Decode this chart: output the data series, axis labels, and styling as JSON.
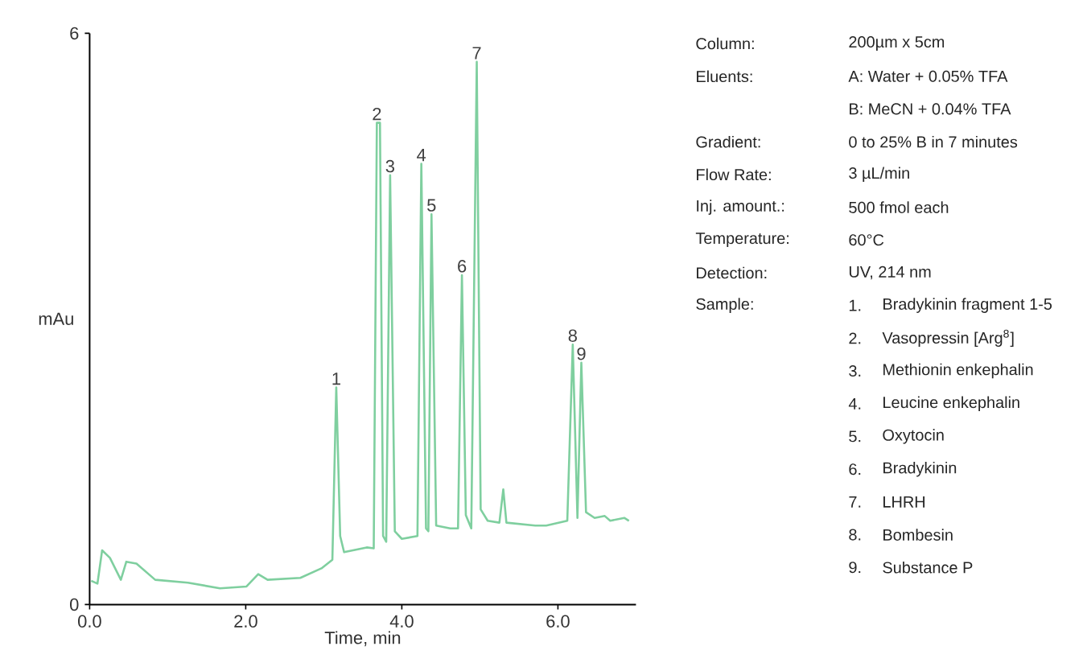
{
  "chart_data": {
    "type": "line",
    "xlabel": "Time, min",
    "ylabel": "mAu",
    "xlim": [
      0,
      7.0
    ],
    "ylim": [
      0,
      6
    ],
    "xticks": [
      {
        "value": 0,
        "label": "0.0"
      },
      {
        "value": 2,
        "label": "2.0"
      },
      {
        "value": 4,
        "label": "4.0"
      },
      {
        "value": 6,
        "label": "6.0"
      }
    ],
    "yticks": [
      0,
      6
    ],
    "grid": false,
    "marker": "none",
    "series": [
      {
        "color": "#7fcf9f",
        "x": [
          0.02,
          0.1,
          0.16,
          0.26,
          0.4,
          0.47,
          0.6,
          0.84,
          1.26,
          1.67,
          2.01,
          2.16,
          2.28,
          2.7,
          2.97,
          3.11,
          3.16,
          3.21,
          3.26,
          3.55,
          3.64,
          3.68,
          3.72,
          3.76,
          3.8,
          3.85,
          3.91,
          4.0,
          4.2,
          4.25,
          4.31,
          4.34,
          4.38,
          4.44,
          4.62,
          4.72,
          4.77,
          4.82,
          4.89,
          4.96,
          5.01,
          5.1,
          5.25,
          5.3,
          5.34,
          5.71,
          5.85,
          6.12,
          6.19,
          6.25,
          6.3,
          6.36,
          6.47,
          6.6,
          6.67,
          6.85,
          6.91
        ],
        "values": [
          0.25,
          0.22,
          0.57,
          0.49,
          0.26,
          0.45,
          0.43,
          0.26,
          0.23,
          0.17,
          0.19,
          0.32,
          0.26,
          0.28,
          0.38,
          0.47,
          2.28,
          0.72,
          0.55,
          0.6,
          0.59,
          5.06,
          5.06,
          0.72,
          0.66,
          4.51,
          0.77,
          0.69,
          0.72,
          4.63,
          0.8,
          0.77,
          4.1,
          0.83,
          0.8,
          0.8,
          3.46,
          0.94,
          0.8,
          5.7,
          1.0,
          0.88,
          0.86,
          1.21,
          0.86,
          0.83,
          0.83,
          0.88,
          2.73,
          0.91,
          2.54,
          0.97,
          0.91,
          0.93,
          0.88,
          0.91,
          0.88
        ]
      }
    ],
    "annotations": [
      {
        "text": "1",
        "x": 3.16,
        "y": 2.28
      },
      {
        "text": "2",
        "x": 3.68,
        "y": 5.06
      },
      {
        "text": "3",
        "x": 3.85,
        "y": 4.51
      },
      {
        "text": "4",
        "x": 4.25,
        "y": 4.63
      },
      {
        "text": "5",
        "x": 4.38,
        "y": 4.1
      },
      {
        "text": "6",
        "x": 4.77,
        "y": 3.46
      },
      {
        "text": "7",
        "x": 4.96,
        "y": 5.7
      },
      {
        "text": "8",
        "x": 6.19,
        "y": 2.73
      },
      {
        "text": "9",
        "x": 6.3,
        "y": 2.54
      },
      "Column:",
      "200µm x 5cm",
      "Eluents:",
      "A: Water + 0.05% TFA",
      "B: MeCN + 0.04% TFA",
      "Gradient:",
      "0 to 25% B in 7 minutes",
      "Flow Rate:",
      "3 µL/min",
      "Inj. amount.:",
      "500 fmol each",
      "Temperature:",
      "60°C",
      "Detection:",
      "UV, 214 nm",
      "Sample:",
      "1.",
      "Bradykinin fragment 1-5",
      "2.",
      "Vasopressin [Arg$^{8}$]",
      "3.",
      "Methionin enkephalin",
      "4.",
      "Leucine enkephalin",
      "5.",
      "Oxytocin",
      "6.",
      "Bradykinin",
      "7.",
      "LHRH",
      "8.",
      "Bombesin",
      "9.",
      "Substance P"
    ]
  }
}
